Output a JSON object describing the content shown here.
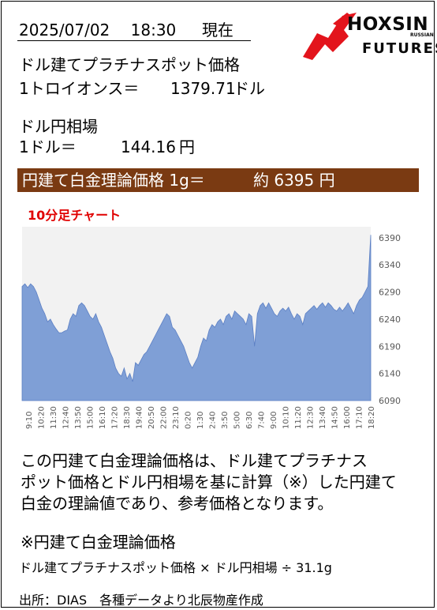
{
  "header": {
    "datetime": "2025/07/02　 18:30 　 現在"
  },
  "logo": {
    "name": "HOXSIN",
    "sub": "FUTURES",
    "tag": "RUSSIAN",
    "colors": {
      "red": "#e3141c",
      "black": "#0a0a0a"
    }
  },
  "platinum": {
    "label": "ドル建てプラチナスポット価格",
    "unit_label": "1トロイオンス＝",
    "value": "1379.71",
    "unit": "ドル"
  },
  "fx": {
    "label": "ドル円相場",
    "unit_label": "1ドル＝",
    "value": "144.16",
    "unit": "円"
  },
  "banner": {
    "label": "円建て白金理論価格 1g＝",
    "value": "約 6395 円",
    "bg_color": "#7a3a12"
  },
  "chart_title": "10分足チャート",
  "chart_data": {
    "type": "area",
    "title": "10分足チャート",
    "x_labels": [
      "9:10",
      "10:20",
      "11:30",
      "12:40",
      "13:50",
      "15:00",
      "16:10",
      "17:20",
      "18:30",
      "19:40",
      "20:50",
      "22:00",
      "23:10",
      "0:20",
      "1:30",
      "2:40",
      "3:50",
      "5:00",
      "6:30",
      "7:40",
      "9:00",
      "10:10",
      "11:20",
      "12:30",
      "13:40",
      "14:50",
      "16:00",
      "17:10",
      "18:20"
    ],
    "y_ticks": [
      6090,
      6140,
      6190,
      6240,
      6290,
      6340,
      6390
    ],
    "ylim": [
      6090,
      6410
    ],
    "y_axis_position": "right",
    "grid": false,
    "fill_color": "#7f9fd6",
    "line_color": "#5b7fc4",
    "plot_bg": "#f2f2f2",
    "values": [
      6300,
      6305,
      6298,
      6305,
      6300,
      6290,
      6275,
      6260,
      6250,
      6235,
      6240,
      6230,
      6222,
      6215,
      6215,
      6218,
      6220,
      6240,
      6250,
      6245,
      6265,
      6270,
      6265,
      6255,
      6245,
      6240,
      6250,
      6235,
      6225,
      6210,
      6195,
      6180,
      6168,
      6150,
      6140,
      6135,
      6150,
      6130,
      6140,
      6125,
      6160,
      6155,
      6165,
      6175,
      6180,
      6190,
      6200,
      6210,
      6220,
      6230,
      6240,
      6250,
      6245,
      6225,
      6220,
      6210,
      6200,
      6190,
      6175,
      6160,
      6150,
      6160,
      6170,
      6190,
      6205,
      6200,
      6220,
      6230,
      6225,
      6235,
      6240,
      6230,
      6245,
      6250,
      6240,
      6255,
      6250,
      6245,
      6240,
      6230,
      6250,
      6245,
      6190,
      6250,
      6265,
      6270,
      6260,
      6270,
      6260,
      6250,
      6245,
      6255,
      6260,
      6255,
      6262,
      6250,
      6240,
      6250,
      6245,
      6230,
      6250,
      6255,
      6260,
      6265,
      6258,
      6265,
      6270,
      6262,
      6270,
      6265,
      6258,
      6255,
      6262,
      6255,
      6262,
      6270,
      6260,
      6250,
      6265,
      6275,
      6280,
      6290,
      6300,
      6395
    ]
  },
  "description": {
    "line1": "この円建て白金理論価格は、ドル建てプラチナス",
    "line2": "ポット価格とドル円相場を基に計算（※）した円建て",
    "line3": "白金の理論値であり、参考価格となります。"
  },
  "formula": {
    "title": "※円建て白金理論価格",
    "text": "ドル建てプラチナスポット価格 × ドル円相場 ÷ 31.1g"
  },
  "source": "出所：DIAS　各種データより北辰物産作成"
}
